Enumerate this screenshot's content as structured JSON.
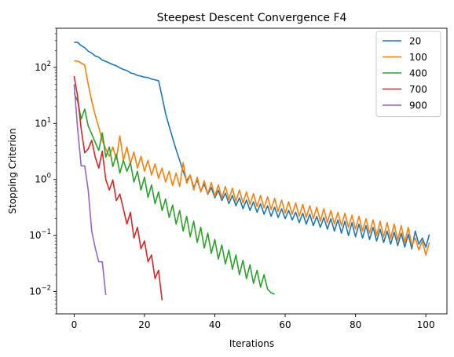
{
  "chart_data": {
    "type": "line",
    "title": "Steepest Descent Convergence F4",
    "xlabel": "Iterations",
    "ylabel": "Stopping Criterion",
    "yscale": "log",
    "xlim": [
      -5,
      106
    ],
    "ylim": [
      0.004,
      500
    ],
    "xticks": [
      0,
      20,
      40,
      60,
      80,
      100
    ],
    "yticks": [
      {
        "value": 0.01,
        "base": "10",
        "exp": "−2"
      },
      {
        "value": 0.1,
        "base": "10",
        "exp": "−1"
      },
      {
        "value": 1,
        "base": "10",
        "exp": "0"
      },
      {
        "value": 10,
        "base": "10",
        "exp": "1"
      },
      {
        "value": 100,
        "base": "10",
        "exp": "2"
      }
    ],
    "grid": false,
    "legend_position": "top-right",
    "series": [
      {
        "name": "20",
        "color": "#1f77b4",
        "values": [
          280,
          280,
          245,
          225,
          195,
          180,
          160,
          152,
          135,
          128,
          120,
          112,
          107,
          98,
          92,
          88,
          80,
          77,
          72,
          70,
          67,
          66,
          62,
          60,
          58,
          30,
          15,
          9,
          5.5,
          3.4,
          2.2,
          1.4,
          0.95,
          1.2,
          0.72,
          0.98,
          0.62,
          0.83,
          0.54,
          0.72,
          0.47,
          0.64,
          0.42,
          0.57,
          0.37,
          0.52,
          0.34,
          0.47,
          0.3,
          0.43,
          0.28,
          0.4,
          0.26,
          0.37,
          0.24,
          0.34,
          0.22,
          0.32,
          0.21,
          0.3,
          0.2,
          0.28,
          0.19,
          0.26,
          0.17,
          0.25,
          0.16,
          0.24,
          0.15,
          0.22,
          0.14,
          0.21,
          0.13,
          0.2,
          0.12,
          0.19,
          0.11,
          0.18,
          0.1,
          0.17,
          0.095,
          0.16,
          0.09,
          0.15,
          0.085,
          0.14,
          0.08,
          0.13,
          0.075,
          0.12,
          0.07,
          0.115,
          0.066,
          0.11,
          0.062,
          0.105,
          0.058,
          0.12,
          0.07,
          0.09,
          0.062,
          0.105
        ]
      },
      {
        "name": "100",
        "color": "#ff7f0e",
        "values": [
          130,
          130,
          120,
          110,
          50,
          25,
          14,
          8.5,
          5,
          3.5,
          2.6,
          3.8,
          2.3,
          6,
          2.2,
          3.8,
          1.9,
          3.1,
          1.6,
          2.6,
          1.4,
          2.2,
          1.2,
          1.9,
          1.05,
          1.6,
          0.9,
          1.4,
          0.78,
          1.3,
          0.75,
          2,
          0.85,
          1.2,
          0.65,
          1.1,
          0.6,
          0.95,
          0.55,
          0.88,
          0.5,
          0.8,
          0.47,
          0.75,
          0.44,
          0.7,
          0.41,
          0.65,
          0.38,
          0.6,
          0.36,
          0.56,
          0.33,
          0.52,
          0.31,
          0.49,
          0.29,
          0.46,
          0.27,
          0.43,
          0.25,
          0.4,
          0.24,
          0.38,
          0.22,
          0.36,
          0.21,
          0.34,
          0.2,
          0.32,
          0.18,
          0.3,
          0.17,
          0.28,
          0.16,
          0.26,
          0.15,
          0.25,
          0.14,
          0.23,
          0.13,
          0.22,
          0.12,
          0.2,
          0.11,
          0.19,
          0.1,
          0.18,
          0.095,
          0.17,
          0.088,
          0.16,
          0.082,
          0.15,
          0.075,
          0.14,
          0.068,
          0.09,
          0.055,
          0.08,
          0.045,
          0.075
        ]
      },
      {
        "name": "400",
        "color": "#2ca02c",
        "values": [
          35,
          25,
          12,
          18,
          9,
          6.5,
          4.6,
          3.3,
          6.8,
          2.5,
          3.8,
          1.7,
          2.8,
          1.3,
          2.2,
          1.4,
          2,
          0.9,
          1.4,
          0.65,
          1.1,
          0.48,
          0.8,
          0.37,
          0.6,
          0.28,
          0.45,
          0.21,
          0.35,
          0.16,
          0.28,
          0.12,
          0.22,
          0.095,
          0.18,
          0.075,
          0.14,
          0.06,
          0.11,
          0.048,
          0.085,
          0.038,
          0.068,
          0.031,
          0.055,
          0.025,
          0.045,
          0.02,
          0.036,
          0.017,
          0.03,
          0.014,
          0.024,
          0.012,
          0.02,
          0.011,
          0.0095,
          0.009
        ]
      },
      {
        "name": "700",
        "color": "#d62728",
        "values": [
          70,
          30,
          8,
          3,
          3.5,
          5,
          2.5,
          1.6,
          3.2,
          1,
          0.65,
          0.98,
          0.42,
          0.55,
          0.3,
          0.16,
          0.26,
          0.09,
          0.14,
          0.058,
          0.08,
          0.034,
          0.045,
          0.017,
          0.024,
          0.007
        ]
      },
      {
        "name": "900",
        "color": "#9467bd",
        "values": [
          50,
          8,
          1.75,
          1.75,
          0.65,
          0.12,
          0.06,
          0.034,
          0.034,
          0.0087
        ]
      }
    ]
  }
}
